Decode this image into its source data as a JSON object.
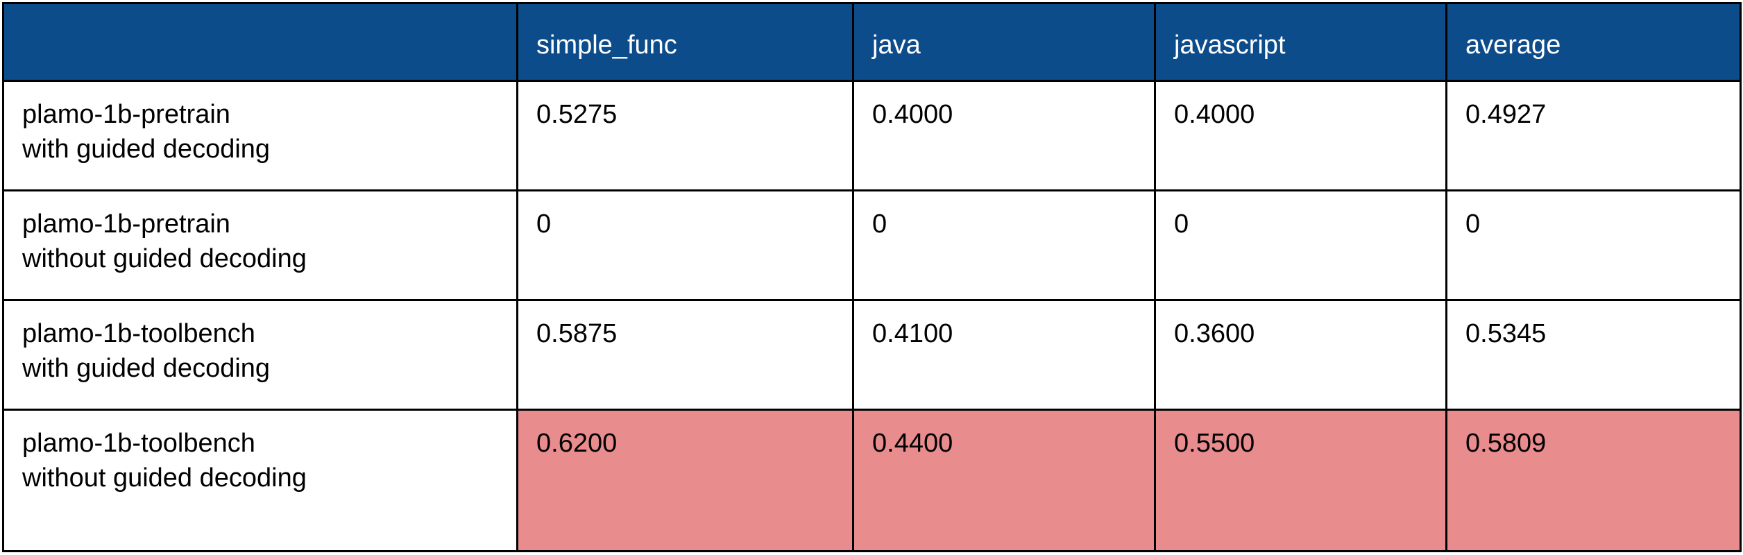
{
  "table": {
    "header_bg": "#0d4c8a",
    "highlight_bg": "#e88c8e",
    "columns": [
      "",
      "simple_func",
      "java",
      "javascript",
      "average"
    ],
    "rows": [
      {
        "label": "plamo-1b-pretrain\nwith guided decoding",
        "values": [
          "0.5275",
          "0.4000",
          "0.4000",
          "0.4927"
        ]
      },
      {
        "label": "plamo-1b-pretrain\nwithout guided decoding",
        "values": [
          "0",
          "0",
          "0",
          "0"
        ]
      },
      {
        "label": "plamo-1b-toolbench\nwith guided decoding",
        "values": [
          "0.5875",
          "0.4100",
          "0.3600",
          "0.5345"
        ]
      },
      {
        "label": "plamo-1b-toolbench\nwithout guided decoding",
        "values": [
          "0.6200",
          "0.4400",
          "0.5500",
          "0.5809"
        ],
        "highlighted": true
      }
    ]
  }
}
